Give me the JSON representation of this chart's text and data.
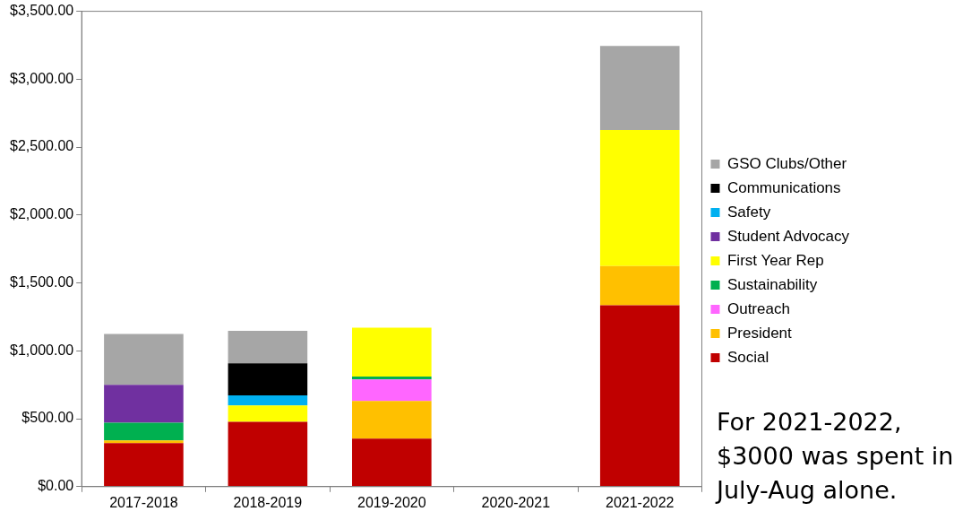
{
  "chart_data": {
    "type": "bar",
    "stacked": true,
    "categories": [
      "2017-2018",
      "2018-2019",
      "2019-2020",
      "2020-2021",
      "2021-2022"
    ],
    "series": [
      {
        "name": "Social",
        "color": "#c00000",
        "values": [
          320,
          478,
          354,
          null,
          1336
        ]
      },
      {
        "name": "President",
        "color": "#ffc000",
        "values": [
          20,
          null,
          276,
          null,
          288
        ]
      },
      {
        "name": "Outreach",
        "color": "#ff66ff",
        "values": [
          null,
          null,
          159,
          null,
          null
        ]
      },
      {
        "name": "Sustainability",
        "color": "#00b050",
        "values": [
          130,
          null,
          22,
          null,
          null
        ]
      },
      {
        "name": "First Year Rep",
        "color": "#ffff00",
        "values": [
          null,
          119,
          360,
          null,
          1002
        ]
      },
      {
        "name": "Student Advocacy",
        "color": "#7030a0",
        "values": [
          280,
          null,
          null,
          null,
          null
        ]
      },
      {
        "name": "Safety",
        "color": "#00b0f0",
        "values": [
          null,
          75,
          null,
          null,
          null
        ]
      },
      {
        "name": "Communications",
        "color": "#000000",
        "values": [
          null,
          236,
          null,
          null,
          null
        ]
      },
      {
        "name": "GSO Clubs/Other",
        "color": "#a6a6a6",
        "values": [
          375,
          239,
          null,
          null,
          619
        ]
      }
    ],
    "ylim": [
      0,
      3500
    ],
    "yticks": [
      {
        "value": 0,
        "label": "$0.00"
      },
      {
        "value": 500,
        "label": "$500.00"
      },
      {
        "value": 1000,
        "label": "$1,000.00"
      },
      {
        "value": 1500,
        "label": "$1,500.00"
      },
      {
        "value": 2000,
        "label": "$2,000.00"
      },
      {
        "value": 2500,
        "label": "$2,500.00"
      },
      {
        "value": 3000,
        "label": "$3,000.00"
      },
      {
        "value": 3500,
        "label": "$3,500.00"
      }
    ],
    "grid": false,
    "legend": "right",
    "annotations": [
      "For 2021-2022, $3000 was spent in July-Aug alone."
    ]
  }
}
